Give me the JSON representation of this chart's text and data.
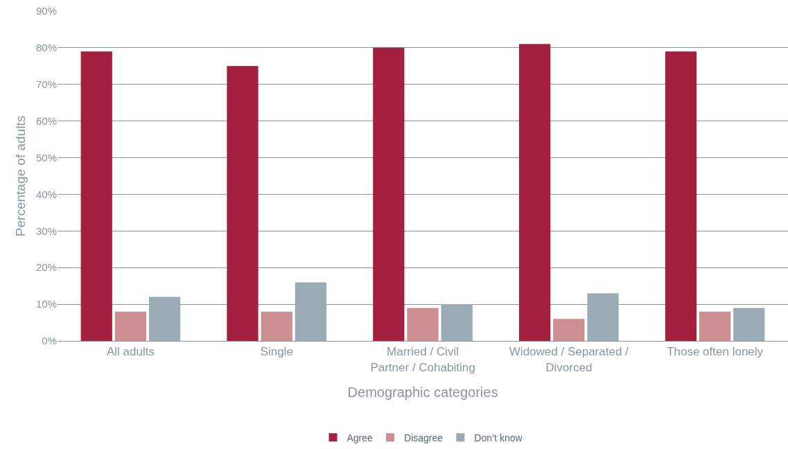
{
  "chart_data": {
    "type": "bar",
    "xlabel": "Demographic categories",
    "ylabel": "Percentage of adults",
    "categories": [
      "All adults",
      "Single",
      "Married / Civil Partner / Cohabiting",
      "Widowed / Separated / Divorced",
      "Those often lonely"
    ],
    "series": [
      {
        "name": "Agree",
        "color": "#a3213f",
        "values": [
          79,
          75,
          80,
          81,
          79
        ]
      },
      {
        "name": "Disagree",
        "color": "#cc8e91",
        "values": [
          8,
          8,
          9,
          6,
          8
        ]
      },
      {
        "name": "Don’t know",
        "color": "#9aabb5",
        "values": [
          12,
          16,
          10,
          13,
          9
        ]
      }
    ],
    "ylim": [
      0,
      90
    ],
    "yticks": [
      {
        "value": 0,
        "label": "0%"
      },
      {
        "value": 10,
        "label": "10%"
      },
      {
        "value": 20,
        "label": "20%"
      },
      {
        "value": 30,
        "label": "30%"
      },
      {
        "value": 40,
        "label": "40%"
      },
      {
        "value": 50,
        "label": "50%"
      },
      {
        "value": 60,
        "label": "60%"
      },
      {
        "value": 70,
        "label": "70%"
      },
      {
        "value": 80,
        "label": "80%"
      },
      {
        "value": 90,
        "label": "90%"
      }
    ],
    "grid": "y",
    "legend": "bottom"
  }
}
